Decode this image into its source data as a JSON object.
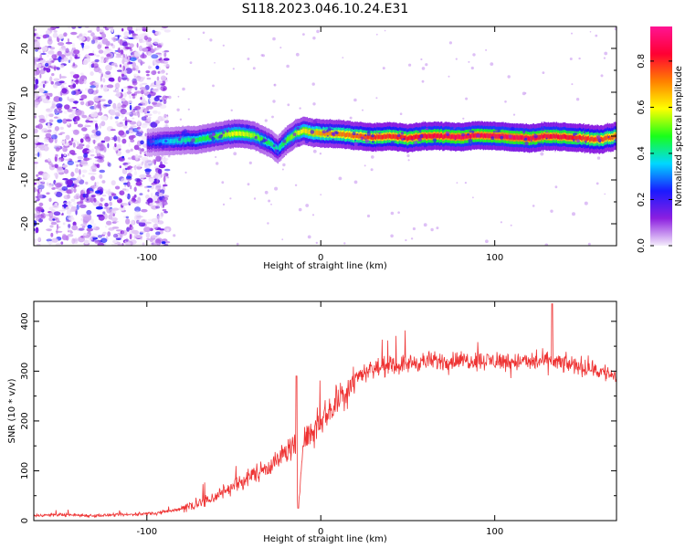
{
  "title": "S118.2023.046.10.24.E31",
  "chart_data": [
    {
      "type": "heatmap",
      "xlabel": "Height of straight line (km)",
      "ylabel": "Frequency (Hz)",
      "xlim": [
        -165,
        170
      ],
      "ylim": [
        -25,
        25
      ],
      "xticks": [
        -100,
        0,
        100
      ],
      "yticks": [
        -20,
        -10,
        0,
        10,
        20
      ],
      "grid": false,
      "colorbar": {
        "label": "Normalized spectral amplitude",
        "range": [
          0,
          0.95
        ],
        "ticks": [
          0.0,
          0.2,
          0.4,
          0.6,
          0.8
        ],
        "colors": [
          "#f4ecfb",
          "#8c1fe0",
          "#1a1aff",
          "#00d8ff",
          "#19ff19",
          "#ffff00",
          "#ff8000",
          "#ff0033",
          "#ff1493"
        ]
      },
      "noise_region_x": [
        -165,
        -88
      ],
      "ridge": {
        "x": [
          -100,
          -90,
          -80,
          -70,
          -60,
          -50,
          -40,
          -30,
          -25,
          -20,
          -15,
          -10,
          -5,
          0,
          10,
          20,
          30,
          40,
          50,
          60,
          70,
          80,
          90,
          100,
          110,
          120,
          130,
          140,
          150,
          160,
          170
        ],
        "y": [
          -1.5,
          -1.2,
          -1.0,
          -0.8,
          0.0,
          0.6,
          0.3,
          -1.5,
          -3.0,
          -1.0,
          0.5,
          1.2,
          0.8,
          0.6,
          0.5,
          0.0,
          -0.3,
          0.0,
          -0.5,
          0.0,
          0.0,
          -0.2,
          0.2,
          0.0,
          -0.3,
          -0.5,
          0.0,
          -0.2,
          -0.5,
          -0.8,
          0.0
        ],
        "amplitude": [
          0.25,
          0.35,
          0.4,
          0.45,
          0.5,
          0.6,
          0.55,
          0.45,
          0.4,
          0.5,
          0.55,
          0.62,
          0.65,
          0.7,
          0.72,
          0.75,
          0.8,
          0.8,
          0.82,
          0.85,
          0.85,
          0.88,
          0.85,
          0.87,
          0.88,
          0.86,
          0.85,
          0.84,
          0.8,
          0.78,
          0.75
        ]
      }
    },
    {
      "type": "line",
      "xlabel": "Height of straight line (km)",
      "ylabel": "SNR (10 * v/v)",
      "xlim": [
        -165,
        170
      ],
      "ylim": [
        0,
        440
      ],
      "xticks": [
        -100,
        0,
        100
      ],
      "yticks": [
        0,
        100,
        200,
        300,
        400
      ],
      "grid": false,
      "color": "#ee3333",
      "series": [
        {
          "x": [
            -165,
            -150,
            -130,
            -110,
            -95,
            -85,
            -75,
            -65,
            -55,
            -45,
            -35,
            -25,
            -20,
            -15,
            -13,
            -10,
            -5,
            0,
            10,
            20,
            30,
            40,
            50,
            60,
            70,
            80,
            90,
            100,
            110,
            120,
            130,
            140,
            150,
            160,
            170
          ],
          "values": [
            10,
            12,
            10,
            12,
            15,
            20,
            30,
            40,
            60,
            80,
            100,
            120,
            140,
            150,
            25,
            160,
            180,
            200,
            240,
            290,
            305,
            310,
            315,
            320,
            320,
            322,
            322,
            320,
            320,
            318,
            320,
            315,
            310,
            300,
            290
          ]
        }
      ],
      "annotations": {
        "spike": {
          "x": -14,
          "y": 290
        },
        "dip": {
          "x": -13,
          "y": 25
        },
        "max_spike": {
          "x": 133,
          "y": 435
        }
      }
    }
  ]
}
